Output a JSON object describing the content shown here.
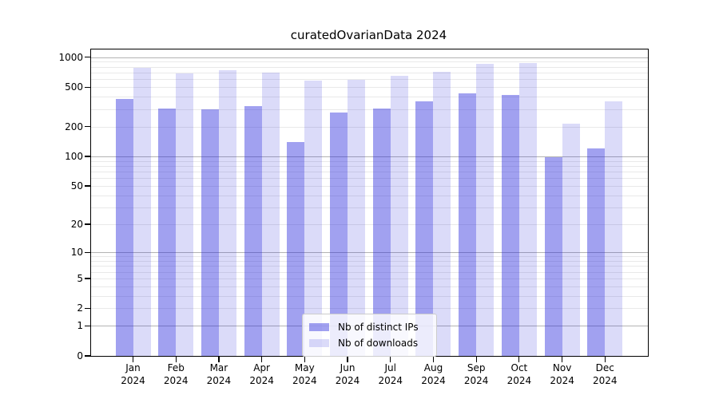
{
  "chart_data": {
    "type": "bar",
    "title": "curatedOvarianData 2024",
    "categories": [
      "Jan",
      "Feb",
      "Mar",
      "Apr",
      "May",
      "Jun",
      "Jul",
      "Aug",
      "Sep",
      "Oct",
      "Nov",
      "Dec"
    ],
    "year": "2024",
    "series": [
      {
        "name": "Nb of distinct IPs",
        "key": "ips",
        "color": "rgba(30,30,220,0.42)",
        "values": [
          380,
          305,
          300,
          325,
          140,
          280,
          305,
          360,
          430,
          415,
          99,
          120
        ]
      },
      {
        "name": "Nb of downloads",
        "key": "downloads",
        "color": "rgba(30,30,220,0.16)",
        "values": [
          790,
          690,
          735,
          705,
          580,
          595,
          650,
          720,
          860,
          880,
          215,
          360
        ]
      }
    ],
    "yscale": "log1p",
    "ylim": [
      0,
      1190
    ],
    "y_ticks": [
      0,
      1,
      2,
      5,
      10,
      20,
      50,
      100,
      200,
      500,
      1000
    ],
    "y_grid_major": [
      1,
      10,
      100,
      1000
    ],
    "y_grid_minor": [
      2,
      3,
      4,
      5,
      6,
      7,
      8,
      9,
      20,
      30,
      40,
      50,
      60,
      70,
      80,
      90,
      200,
      300,
      400,
      500,
      600,
      700,
      800,
      900
    ],
    "grid": true,
    "legend_position": "lower center"
  },
  "colors": {
    "grid_major": "#b3b3b3",
    "grid_minor": "#e9e9e9",
    "spine": "#000000",
    "legend_border": "#cccccc"
  }
}
